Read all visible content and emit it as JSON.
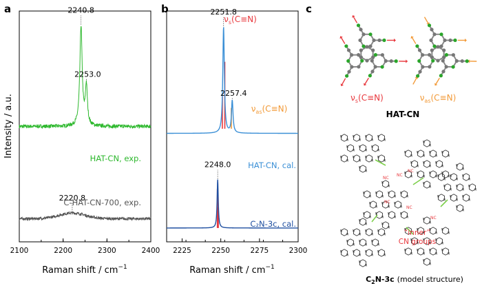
{
  "colors": {
    "hat_exp": "#2db82d",
    "chat_exp": "#555555",
    "hat_cal": "#3a8fd6",
    "c2n_cal": "#1f4fa0",
    "sym_bar": "#e8383d",
    "asym_bar": "#f29a38",
    "axis": "#000000"
  },
  "panel_labels": {
    "a": "a",
    "b": "b",
    "c": "c"
  },
  "chart_data": [
    {
      "panel": "a",
      "type": "line",
      "xlabel": "Raman shift / cm",
      "xlabel_sup": "−1",
      "ylabel": "Intensity / a.u.",
      "xlim": [
        2100,
        2400
      ],
      "xticks": [
        2100,
        2200,
        2300,
        2400
      ],
      "series": [
        {
          "name": "HAT-CN, exp.",
          "color": "#2db82d",
          "offset": 0.5,
          "peaks": [
            {
              "center": 2240.8,
              "amp": 0.43,
              "width": 3.2
            },
            {
              "center": 2253.0,
              "amp": 0.17,
              "width": 2.8
            }
          ]
        },
        {
          "name": "C-HAT-CN-700, exp.",
          "color": "#555555",
          "offset": 0.1,
          "peaks": [
            {
              "center": 2220.8,
              "amp": 0.025,
              "width": 30
            }
          ]
        }
      ],
      "annotations": [
        {
          "text": "2240.8",
          "x": 2240.8
        },
        {
          "text": "2253.0",
          "x": 2253.0
        },
        {
          "text": "2220.8",
          "x": 2220.8
        }
      ]
    },
    {
      "panel": "b",
      "type": "line",
      "xlabel": "Raman shift / cm",
      "xlabel_sup": "−1",
      "xlim": [
        2215,
        2300
      ],
      "xticks": [
        2225,
        2250,
        2275,
        2300
      ],
      "series": [
        {
          "name": "HAT-CN, cal.",
          "color": "#3a8fd6",
          "offset": 0.47,
          "peaks": [
            {
              "center": 2251.8,
              "amp": 0.46,
              "width": 0.6
            },
            {
              "center": 2257.4,
              "amp": 0.14,
              "width": 0.6
            }
          ]
        },
        {
          "name": "C₂N-3c, cal.",
          "color": "#1f4fa0",
          "offset": 0.06,
          "peaks": [
            {
              "center": 2248.0,
              "amp": 0.21,
              "width": 0.45
            }
          ]
        }
      ],
      "bars": [
        {
          "x": 2251.0,
          "base": 0.49,
          "top": 0.63,
          "color": "#e8383d",
          "label": "νs(C≡N)"
        },
        {
          "x": 2252.6,
          "base": 0.49,
          "top": 0.78,
          "color": "#e8383d",
          "label": "νs(C≡N)"
        },
        {
          "x": 2256.8,
          "base": 0.49,
          "top": 0.58,
          "color": "#f29a38",
          "label": "νas(C≡N)"
        },
        {
          "x": 2247.8,
          "base": 0.06,
          "top": 0.23,
          "color": "#e8383d",
          "label": "νs(C≡N)"
        },
        {
          "x": 2248.4,
          "base": 0.06,
          "top": 0.15,
          "color": "#e8383d",
          "label": "νs(C≡N)"
        }
      ],
      "annotations": [
        {
          "text": "2251.8",
          "x": 2251.8
        },
        {
          "text": "2257.4",
          "x": 2257.4
        },
        {
          "text": "2248.0",
          "x": 2248.0
        }
      ],
      "mode_labels": {
        "sym": "ν",
        "sym_sub": "s",
        "sym_tail": "(C≡N)",
        "asym": "ν",
        "asym_sub": "as",
        "asym_tail": "(C≡N)"
      }
    }
  ],
  "panel_c": {
    "sym_label": {
      "nu": "ν",
      "sub": "s",
      "tail": "(C≡N)"
    },
    "asym_label": {
      "nu": "ν",
      "sub": "as",
      "tail": "(C≡N)"
    },
    "molecule_title": "HAT-CN",
    "cn_label": "NC",
    "inner_label_1": "“inner”",
    "inner_label_2": "CN groups",
    "structure_title_main": "C",
    "structure_title_sub": "2",
    "structure_title_rest": "N-3c",
    "structure_note": "(model structure)"
  }
}
